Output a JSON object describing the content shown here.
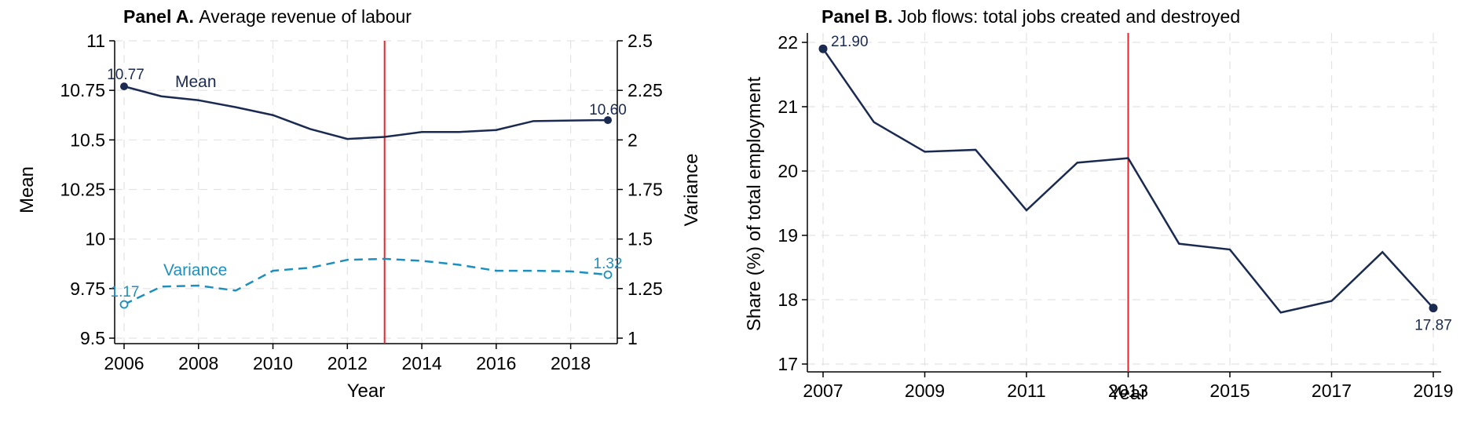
{
  "chart_data": [
    {
      "type": "line",
      "panel_label": "Panel A.",
      "title": "Average revenue of labour",
      "xlabel": "Year",
      "ylabel": "Mean",
      "ylabel_right": "Variance",
      "xlim": [
        2006,
        2019
      ],
      "ylim": [
        9.5,
        11.0
      ],
      "ylim_right": [
        1.0,
        2.5
      ],
      "x_ticks": [
        2006,
        2008,
        2010,
        2012,
        2014,
        2016,
        2018
      ],
      "y_ticks": [
        "9.5",
        "9.75",
        "10",
        "10.25",
        "10.5",
        "10.75",
        "11"
      ],
      "y_ticks_right": [
        "1",
        "1.25",
        "1.5",
        "1.75",
        "2",
        "2.25",
        "2.5"
      ],
      "grid": true,
      "vline_x": 2013,
      "series": [
        {
          "name": "Mean",
          "axis": "left",
          "style": "solid",
          "color": "#1a2a50",
          "x": [
            2006,
            2007,
            2008,
            2009,
            2010,
            2011,
            2012,
            2013,
            2014,
            2015,
            2016,
            2017,
            2018,
            2019
          ],
          "values": [
            10.77,
            10.72,
            10.7,
            10.665,
            10.625,
            10.555,
            10.505,
            10.515,
            10.54,
            10.54,
            10.55,
            10.595,
            10.598,
            10.6
          ],
          "end_labels": [
            "10.77",
            "10.60"
          ]
        },
        {
          "name": "Variance",
          "axis": "right",
          "style": "dashed",
          "color": "#1d8fbf",
          "x": [
            2006,
            2007,
            2008,
            2009,
            2010,
            2011,
            2012,
            2013,
            2014,
            2015,
            2016,
            2017,
            2018,
            2019
          ],
          "values": [
            1.17,
            1.26,
            1.265,
            1.24,
            1.34,
            1.355,
            1.395,
            1.4,
            1.39,
            1.37,
            1.34,
            1.34,
            1.337,
            1.32
          ],
          "end_labels": [
            "1.17",
            "1.32"
          ]
        }
      ]
    },
    {
      "type": "line",
      "panel_label": "Panel B.",
      "title": "Job flows: total jobs created and destroyed",
      "xlabel": "Year",
      "ylabel": "Share (%) of total employment",
      "xlim": [
        2007,
        2019
      ],
      "ylim": [
        17,
        22
      ],
      "x_ticks": [
        2007,
        2009,
        2011,
        2013,
        2015,
        2017,
        2019
      ],
      "y_ticks": [
        "17",
        "18",
        "19",
        "20",
        "21",
        "22"
      ],
      "grid": true,
      "vline_x": 2013,
      "series": [
        {
          "color": "#1a2a50",
          "x": [
            2007,
            2008,
            2009,
            2010,
            2011,
            2012,
            2013,
            2014,
            2015,
            2016,
            2017,
            2018,
            2019
          ],
          "values": [
            21.9,
            20.76,
            20.3,
            20.33,
            19.39,
            20.13,
            20.2,
            18.87,
            18.78,
            17.8,
            17.98,
            18.74,
            17.87
          ],
          "end_labels": [
            "21.90",
            "17.87"
          ]
        }
      ]
    }
  ],
  "colors": {
    "vline": "#e8252c",
    "grid": "#e3e3e3",
    "axis": "#000000"
  }
}
